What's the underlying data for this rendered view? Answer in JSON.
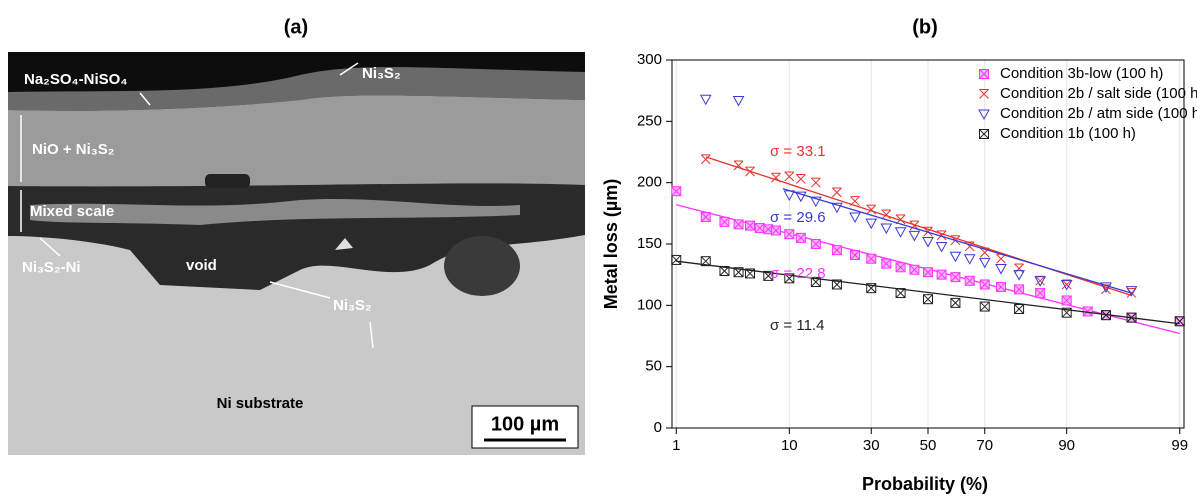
{
  "panel_a": {
    "title": "(a)",
    "labels": [
      "Na₂SO₄-NiSO₄",
      "Ni₃S₂",
      "NiO + Ni₃S₂",
      "Mixed scale",
      "Ni₃S₂-Ni",
      "void",
      "Ni₃S₂",
      "Ni substrate"
    ],
    "scale_bar": "100 µm"
  },
  "chart_data": {
    "type": "scatter",
    "title": "(b)",
    "x_label": "Probability (%)",
    "y_label": "Metal loss (µm)",
    "xscale": "probability",
    "xlim": [
      0.9,
      99.1
    ],
    "ylim": [
      0,
      300
    ],
    "xticks": [
      1,
      10,
      30,
      50,
      70,
      90,
      99
    ],
    "yticks": [
      0,
      50,
      100,
      150,
      200,
      250,
      300
    ],
    "grid": true,
    "legend": "upper right",
    "series": [
      {
        "name": "Condition 3b-low (100 h)",
        "color": "#ff33ff",
        "marker": "boxed-x-filled",
        "x": [
          1,
          2,
          3,
          4,
          5,
          6,
          7,
          8,
          10,
          12,
          15,
          20,
          25,
          30,
          35,
          40,
          45,
          50,
          55,
          60,
          65,
          70,
          75,
          80,
          85,
          90,
          93,
          95,
          97,
          99
        ],
        "values": [
          193,
          172,
          168,
          166,
          165,
          163,
          162,
          161,
          158,
          155,
          150,
          145,
          141,
          138,
          134,
          131,
          129,
          127,
          125,
          123,
          120,
          117,
          115,
          113,
          110,
          104,
          95,
          92,
          90,
          87
        ],
        "fit": {
          "x": [
            1,
            99
          ],
          "values": [
            182,
            77
          ]
        },
        "annotation": "σ = 22.8"
      },
      {
        "name": "Condition 2b / salt side (100 h)",
        "color": "#e8322e",
        "marker": "x",
        "x": [
          2,
          4,
          5,
          8,
          10,
          12,
          15,
          20,
          25,
          30,
          35,
          40,
          45,
          50,
          55,
          60,
          65,
          70,
          75,
          80,
          85,
          90,
          95,
          97
        ],
        "values": [
          219,
          214,
          209,
          204,
          205,
          203,
          200,
          192,
          185,
          178,
          174,
          170,
          165,
          160,
          157,
          153,
          148,
          143,
          138,
          130,
          120,
          117,
          113,
          110
        ],
        "fit": {
          "x": [
            2,
            97
          ],
          "values": [
            221,
            108
          ]
        },
        "annotation": "σ = 33.1"
      },
      {
        "name": "Condition 2b / atm side (100 h)",
        "color": "#3a3ad6",
        "marker": "triangle-down",
        "x": [
          2,
          4,
          10,
          12,
          15,
          20,
          25,
          30,
          35,
          40,
          45,
          50,
          55,
          60,
          65,
          70,
          75,
          80,
          85,
          90,
          95,
          97
        ],
        "values": [
          268,
          267,
          190,
          189,
          185,
          180,
          172,
          167,
          163,
          160,
          157,
          152,
          148,
          140,
          138,
          135,
          130,
          125,
          120,
          117,
          115,
          112
        ],
        "fit": {
          "x": [
            9,
            97
          ],
          "values": [
            195,
            110
          ]
        },
        "annotation": "σ = 29.6"
      },
      {
        "name": "Condition 1b (100 h)",
        "color": "#222222",
        "marker": "boxed-x",
        "x": [
          1,
          2,
          3,
          4,
          5,
          7,
          10,
          15,
          20,
          30,
          40,
          50,
          60,
          70,
          80,
          90,
          95,
          97,
          99
        ],
        "values": [
          137,
          136,
          128,
          127,
          126,
          124,
          122,
          119,
          117,
          114,
          110,
          105,
          102,
          99,
          97,
          94,
          92,
          90,
          87
        ],
        "fit": {
          "x": [
            1,
            99
          ],
          "values": [
            136,
            85
          ]
        },
        "annotation": "σ = 11.4"
      }
    ]
  }
}
